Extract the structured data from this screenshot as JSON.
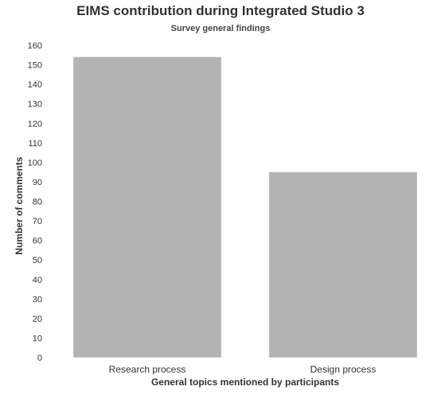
{
  "chart_data": {
    "type": "bar",
    "title": "EIMS contribution during Integrated Studio 3",
    "subtitle": "Survey  general findings",
    "xlabel": "General topics mentioned by participants",
    "ylabel": "Number of comments",
    "categories": [
      "Research process",
      "Design process"
    ],
    "values": [
      154,
      95
    ],
    "ylim": [
      0,
      160
    ],
    "yticks": [
      0,
      10,
      20,
      30,
      40,
      50,
      60,
      70,
      80,
      90,
      100,
      110,
      120,
      130,
      140,
      150,
      160
    ],
    "grid": false,
    "legend": "none",
    "bar_color": "#b3b3b3"
  }
}
